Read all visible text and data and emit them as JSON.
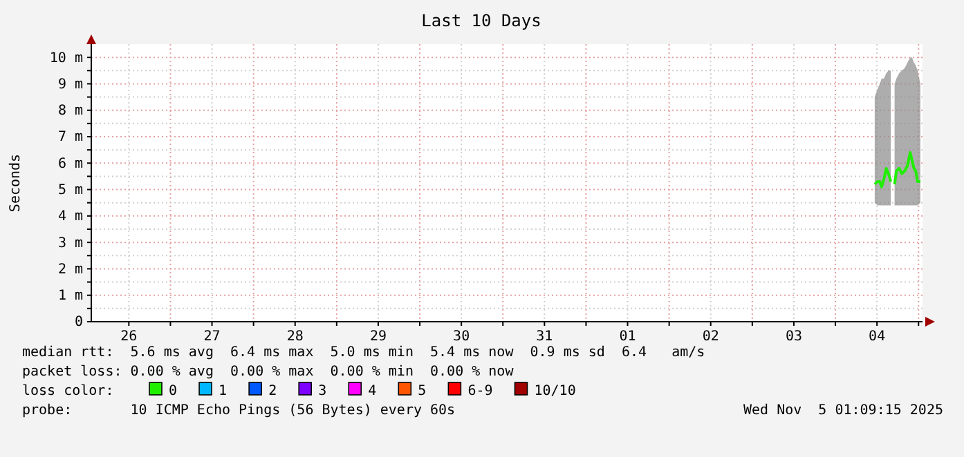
{
  "chart_data": {
    "type": "line",
    "title": "Last 10 Days",
    "ylabel": "Seconds",
    "x": [
      "2025-11-04T11:21",
      "2025-11-04T12:09",
      "2025-11-04T12:49",
      "2025-11-04T13:21",
      "2025-11-04T14:01",
      "2025-11-04T14:41",
      "2025-11-04T15:20",
      "2025-11-04T16:00",
      "2025-11-04T16:40",
      "2025-11-04T17:05",
      "2025-11-04T17:37",
      "2025-11-04T18:24",
      "2025-11-04T19:12",
      "2025-11-04T20:01",
      "2025-11-04T20:48",
      "2025-11-04T21:36",
      "2025-11-04T22:08",
      "2025-11-04T22:41",
      "2025-11-04T23:12",
      "2025-11-04T23:44",
      "2025-11-05T00:32"
    ],
    "series": [
      {
        "name": "0",
        "color": "#20ee00",
        "values": [
          5.2,
          5.3,
          5.3,
          5.1,
          5.4,
          5.8,
          5.6,
          5.3,
          null,
          5.2,
          5.7,
          5.8,
          5.6,
          5.7,
          5.9,
          6.4,
          6.1,
          5.8,
          5.7,
          5.3,
          5.3
        ],
        "lower": [
          4.5,
          4.4,
          4.4,
          4.4,
          4.4,
          4.4,
          4.4,
          4.4,
          null,
          4.4,
          4.4,
          4.4,
          4.4,
          4.4,
          4.4,
          4.4,
          4.4,
          4.4,
          4.4,
          4.4,
          4.5
        ],
        "upper": [
          8.5,
          8.8,
          9.0,
          9.2,
          9.2,
          9.4,
          9.5,
          9.5,
          null,
          9.0,
          9.2,
          9.4,
          9.5,
          9.6,
          9.8,
          10.0,
          10.0,
          9.8,
          9.7,
          9.5,
          9.0
        ]
      },
      {
        "name": "1",
        "color": "#00b8ff",
        "values": [
          null,
          null,
          null,
          null,
          null,
          null,
          null,
          null,
          null,
          null,
          null,
          null,
          null,
          null,
          null,
          null,
          null,
          null,
          null,
          null,
          null
        ]
      },
      {
        "name": "2",
        "color": "#0059ff",
        "values": [
          null,
          null,
          null,
          null,
          null,
          null,
          null,
          null,
          null,
          null,
          null,
          null,
          null,
          null,
          null,
          null,
          null,
          null,
          null,
          null,
          null
        ]
      },
      {
        "name": "3",
        "color": "#7e00ff",
        "values": [
          null,
          null,
          null,
          null,
          null,
          null,
          null,
          null,
          null,
          null,
          null,
          null,
          null,
          null,
          null,
          null,
          null,
          null,
          null,
          null,
          null
        ]
      },
      {
        "name": "4",
        "color": "#ff00ff",
        "values": [
          null,
          null,
          null,
          null,
          null,
          null,
          null,
          null,
          null,
          null,
          null,
          null,
          null,
          null,
          null,
          null,
          null,
          null,
          null,
          null,
          null
        ]
      },
      {
        "name": "5",
        "color": "#ff5500",
        "values": [
          null,
          null,
          null,
          null,
          null,
          null,
          null,
          null,
          null,
          null,
          null,
          null,
          null,
          null,
          null,
          null,
          null,
          null,
          null,
          null,
          null
        ]
      },
      {
        "name": "6-9",
        "color": "#ff0000",
        "values": [
          null,
          null,
          null,
          null,
          null,
          null,
          null,
          null,
          null,
          null,
          null,
          null,
          null,
          null,
          null,
          null,
          null,
          null,
          null,
          null,
          null
        ]
      },
      {
        "name": "10/10",
        "color": "#a10000",
        "values": [
          null,
          null,
          null,
          null,
          null,
          null,
          null,
          null,
          null,
          null,
          null,
          null,
          null,
          null,
          null,
          null,
          null,
          null,
          null,
          null,
          null
        ]
      }
    ],
    "legend": "bottom",
    "legend_title": "loss color:",
    "grid": true,
    "xlim": [
      "2025-10-26T01:09",
      "2025-11-05T01:09"
    ],
    "xticks": [
      {
        "value": "2025-10-26T12:00",
        "label": "26"
      },
      {
        "value": "2025-10-27T00:00",
        "label": null
      },
      {
        "value": "2025-10-27T12:00",
        "label": "27"
      },
      {
        "value": "2025-10-28T00:00",
        "label": null
      },
      {
        "value": "2025-10-28T12:00",
        "label": "28"
      },
      {
        "value": "2025-10-29T00:00",
        "label": null
      },
      {
        "value": "2025-10-29T12:00",
        "label": "29"
      },
      {
        "value": "2025-10-30T00:00",
        "label": null
      },
      {
        "value": "2025-10-30T12:00",
        "label": "30"
      },
      {
        "value": "2025-10-31T00:00",
        "label": null
      },
      {
        "value": "2025-10-31T12:00",
        "label": "31"
      },
      {
        "value": "2025-11-01T00:00",
        "label": null
      },
      {
        "value": "2025-11-01T12:00",
        "label": "01"
      },
      {
        "value": "2025-11-02T00:00",
        "label": null
      },
      {
        "value": "2025-11-02T12:00",
        "label": "02"
      },
      {
        "value": "2025-11-03T00:00",
        "label": null
      },
      {
        "value": "2025-11-03T12:00",
        "label": "03"
      },
      {
        "value": "2025-11-04T00:00",
        "label": null
      },
      {
        "value": "2025-11-04T12:00",
        "label": "04"
      },
      {
        "value": "2025-11-05T00:00",
        "label": null
      }
    ],
    "ylim": [
      0,
      10.5
    ],
    "yticks": [
      0,
      {
        "value": 0.5,
        "label": null
      },
      {
        "value": 1,
        "label": "1 m"
      },
      {
        "value": 1.5,
        "label": null
      },
      {
        "value": 2,
        "label": "2 m"
      },
      {
        "value": 2.5,
        "label": null
      },
      {
        "value": 3,
        "label": "3 m"
      },
      {
        "value": 3.5,
        "label": null
      },
      {
        "value": 4,
        "label": "4 m"
      },
      {
        "value": 4.5,
        "label": null
      },
      {
        "value": 5,
        "label": "5 m"
      },
      {
        "value": 5.5,
        "label": null
      },
      {
        "value": 6,
        "label": "6 m"
      },
      {
        "value": 6.5,
        "label": null
      },
      {
        "value": 7,
        "label": "7 m"
      },
      {
        "value": 7.5,
        "label": null
      },
      {
        "value": 8,
        "label": "8 m"
      },
      {
        "value": 8.5,
        "label": null
      },
      {
        "value": 9,
        "label": "9 m"
      },
      {
        "value": 9.5,
        "label": null
      },
      {
        "value": 10,
        "label": "10 m"
      }
    ],
    "annotations": [
      "median rtt:  5.6 ms avg  6.4 ms max  5.0 ms min  5.4 ms now  0.9 ms sd  6.4   am/s",
      "packet loss: 0.00 % avg  0.00 % max  0.00 % min  0.00 % now",
      "probe:       10 ICMP Echo Pings (56 Bytes) every 60s",
      "Wed Nov  5 01:09:15 2025"
    ]
  }
}
